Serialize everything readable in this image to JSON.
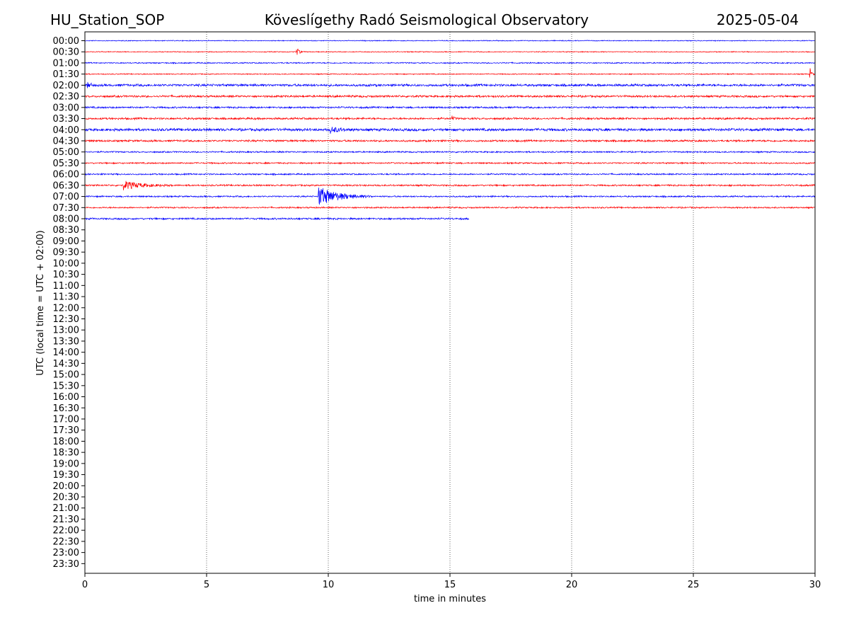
{
  "header": {
    "station": "HU_Station_SOP",
    "title": "Köveslígethy Radó Seismological Observatory",
    "date": "2025-05-04"
  },
  "chart_data": {
    "type": "line",
    "title": "Köveslígethy Radó Seismological Observatory",
    "xlabel": "time in minutes",
    "ylabel": "UTC (local time = UTC + 02:00)",
    "xlim": [
      0,
      30
    ],
    "x_ticks": [
      0,
      5,
      10,
      15,
      20,
      25,
      30
    ],
    "grid": "vertical dotted lines at each x tick",
    "y_ticks": [
      "00:00",
      "00:30",
      "01:00",
      "01:30",
      "02:00",
      "02:30",
      "03:00",
      "03:30",
      "04:00",
      "04:30",
      "05:00",
      "05:30",
      "06:00",
      "06:30",
      "07:00",
      "07:30",
      "08:00",
      "08:30",
      "09:00",
      "09:30",
      "10:00",
      "10:30",
      "11:00",
      "11:30",
      "12:00",
      "12:30",
      "13:00",
      "13:30",
      "14:00",
      "14:30",
      "15:00",
      "15:30",
      "16:00",
      "16:30",
      "17:00",
      "17:30",
      "18:00",
      "18:30",
      "19:00",
      "19:30",
      "20:00",
      "20:30",
      "21:00",
      "21:30",
      "22:00",
      "22:30",
      "23:00",
      "23:30"
    ],
    "trace_colors": [
      "#0000ff",
      "#ff0000"
    ],
    "traces": [
      {
        "row": "00:00",
        "end_min": 30,
        "noise": 0.6,
        "events": []
      },
      {
        "row": "00:30",
        "end_min": 30,
        "noise": 0.6,
        "events": [
          {
            "t": 8.7,
            "amp": 6,
            "dur": 0.3
          }
        ]
      },
      {
        "row": "01:00",
        "end_min": 30,
        "noise": 0.8,
        "events": []
      },
      {
        "row": "01:30",
        "end_min": 30,
        "noise": 0.7,
        "events": [
          {
            "t": 29.8,
            "amp": 8,
            "dur": 0.2
          }
        ]
      },
      {
        "row": "02:00",
        "end_min": 30,
        "noise": 1.6,
        "events": [
          {
            "t": 0.1,
            "amp": 4,
            "dur": 0.4
          }
        ]
      },
      {
        "row": "02:30",
        "end_min": 30,
        "noise": 1.4,
        "events": []
      },
      {
        "row": "03:00",
        "end_min": 30,
        "noise": 1.2,
        "events": []
      },
      {
        "row": "03:30",
        "end_min": 30,
        "noise": 1.3,
        "events": [
          {
            "t": 15.1,
            "amp": 3,
            "dur": 0.2
          }
        ]
      },
      {
        "row": "04:00",
        "end_min": 30,
        "noise": 1.8,
        "events": [
          {
            "t": 10.1,
            "amp": 4,
            "dur": 1.0
          }
        ]
      },
      {
        "row": "04:30",
        "end_min": 30,
        "noise": 1.3,
        "events": []
      },
      {
        "row": "05:00",
        "end_min": 30,
        "noise": 1.0,
        "events": []
      },
      {
        "row": "05:30",
        "end_min": 30,
        "noise": 1.0,
        "events": []
      },
      {
        "row": "06:00",
        "end_min": 30,
        "noise": 1.0,
        "events": []
      },
      {
        "row": "06:30",
        "end_min": 30,
        "noise": 1.1,
        "events": [
          {
            "t": 1.6,
            "amp": 6,
            "dur": 2.0
          }
        ]
      },
      {
        "row": "07:00",
        "end_min": 30,
        "noise": 1.0,
        "events": [
          {
            "t": 9.6,
            "amp": 14,
            "dur": 2.2
          }
        ]
      },
      {
        "row": "07:30",
        "end_min": 30,
        "noise": 1.0,
        "events": []
      },
      {
        "row": "08:00",
        "end_min": 15.8,
        "noise": 1.2,
        "events": []
      }
    ]
  }
}
